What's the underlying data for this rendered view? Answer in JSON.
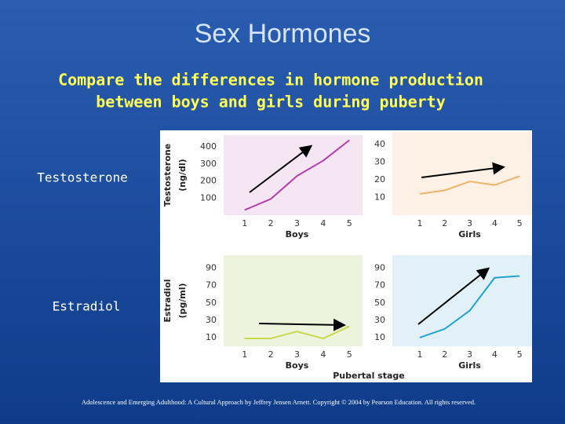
{
  "slide": {
    "title": "Sex Hormones",
    "subtitle": [
      "Compare the differences in hormone production",
      "between boys and girls during puberty"
    ],
    "row_labels": [
      "Testosterone",
      "Estradiol"
    ],
    "x_axis_title": "Pubertal stage",
    "footer": "Adolescence and Emerging Adulthood: A Cultural Approach by Jeffrey Jensen Arnett. Copyright © 2004 by Pearson Education. All rights reserved."
  },
  "chart_data": [
    {
      "type": "line",
      "ylabel": [
        "Testosterone",
        "(ng/dl)"
      ],
      "xlabel": "Boys",
      "x": [
        1,
        2,
        3,
        4,
        5
      ],
      "xlim": [
        0.2,
        5.5
      ],
      "xticks": [
        1,
        2,
        3,
        4,
        5
      ],
      "values": [
        30,
        95,
        230,
        320,
        440
      ],
      "color": "#b53cb0",
      "background": "#f4e6f3",
      "ylim": [
        0,
        470
      ],
      "yticks": [
        100,
        200,
        300,
        400
      ]
    },
    {
      "type": "line",
      "xlabel": "Girls",
      "x": [
        1,
        2,
        3,
        4,
        5
      ],
      "xlim": [
        -0.1,
        5.5
      ],
      "xticks": [
        1,
        2,
        3,
        4,
        5
      ],
      "values": [
        12,
        14,
        19,
        17,
        22
      ],
      "color": "#ecb468",
      "background": "#fdf0e5",
      "ylim": [
        0,
        47
      ],
      "yticks": [
        10,
        20,
        30,
        40
      ]
    },
    {
      "type": "line",
      "ylabel": [
        "Estradiol",
        "(pg/ml)"
      ],
      "xlabel": "Boys",
      "x": [
        1,
        2,
        3,
        4,
        5
      ],
      "xlim": [
        0.2,
        5.5
      ],
      "xticks": [
        1,
        2,
        3,
        4,
        5
      ],
      "values": [
        9,
        9,
        17,
        9,
        23
      ],
      "color": "#c8d84a",
      "background": "#eef3dd",
      "ylim": [
        0,
        105
      ],
      "yticks": [
        10,
        30,
        50,
        70,
        90
      ]
    },
    {
      "type": "line",
      "xlabel": "Girls",
      "x": [
        1,
        2,
        3,
        4,
        5
      ],
      "xlim": [
        -0.1,
        5.5
      ],
      "xticks": [
        1,
        2,
        3,
        4,
        5
      ],
      "values": [
        10,
        20,
        41,
        79,
        81
      ],
      "color": "#1ea2d2",
      "background": "#e2f1f8",
      "ylim": [
        0,
        105
      ],
      "yticks": [
        10,
        30,
        50,
        70,
        90
      ]
    }
  ]
}
